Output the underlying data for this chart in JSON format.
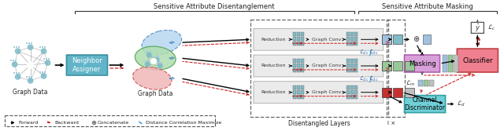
{
  "title_sad": "Sensitive Attribute Disentanglement",
  "title_sam": "Sensitive Attribute Masking",
  "label_graph1": "Graph Data",
  "label_graph2": "Graph Data",
  "label_na": "Neighbor\nAssigner",
  "label_dl": "Disentangled Layers",
  "label_lx": "l ×",
  "label_masking": "Masking",
  "label_classifier": "Classifier",
  "label_cd": "Channel\nDiscriminator",
  "label_reduction": "Reduction",
  "label_graphconv": "Graph Conv",
  "legend_forward": "Forward",
  "legend_backward": "Backward",
  "legend_concat": "Concatenate",
  "legend_dcm": "Distance Correlation Maximize",
  "label_yhat": "$\\hat{y}$",
  "label_Lc": "$\\mathcal{L}_c$",
  "label_Ldc": "$\\mathcal{L}_{dc}$",
  "label_Lm": "$\\mathcal{L}_m$",
  "label_Ld": "$\\mathcal{L}_d$",
  "na_color": "#62b4c8",
  "masking_color": "#d8a0d8",
  "classifier_color": "#f08090",
  "cd_color": "#70d0d8",
  "ellipse_blue_fc": "#b8d8f0",
  "ellipse_blue_ec": "#5090c8",
  "ellipse_green_fc": "#b0ddb0",
  "ellipse_green_ec": "#50a050",
  "ellipse_red_fc": "#f0b8b8",
  "ellipse_red_ec": "#d05050",
  "bar_teal": "#80bcc8",
  "bar_blue": "#a0c0e0",
  "bar_green": "#98c898",
  "bar_pink": "#e89898",
  "bar_gray": "#c0c0c0",
  "col_red": "#c83030",
  "col_darkred": "#aa2020",
  "node_color": "#80bcc8",
  "row_colors": [
    "#80bcc8",
    "#98c898",
    "#c83030"
  ],
  "row_end_colors": [
    "#a0c0e0",
    "#98c898",
    "#c83030"
  ],
  "inner_bg": "#e8e8e8"
}
